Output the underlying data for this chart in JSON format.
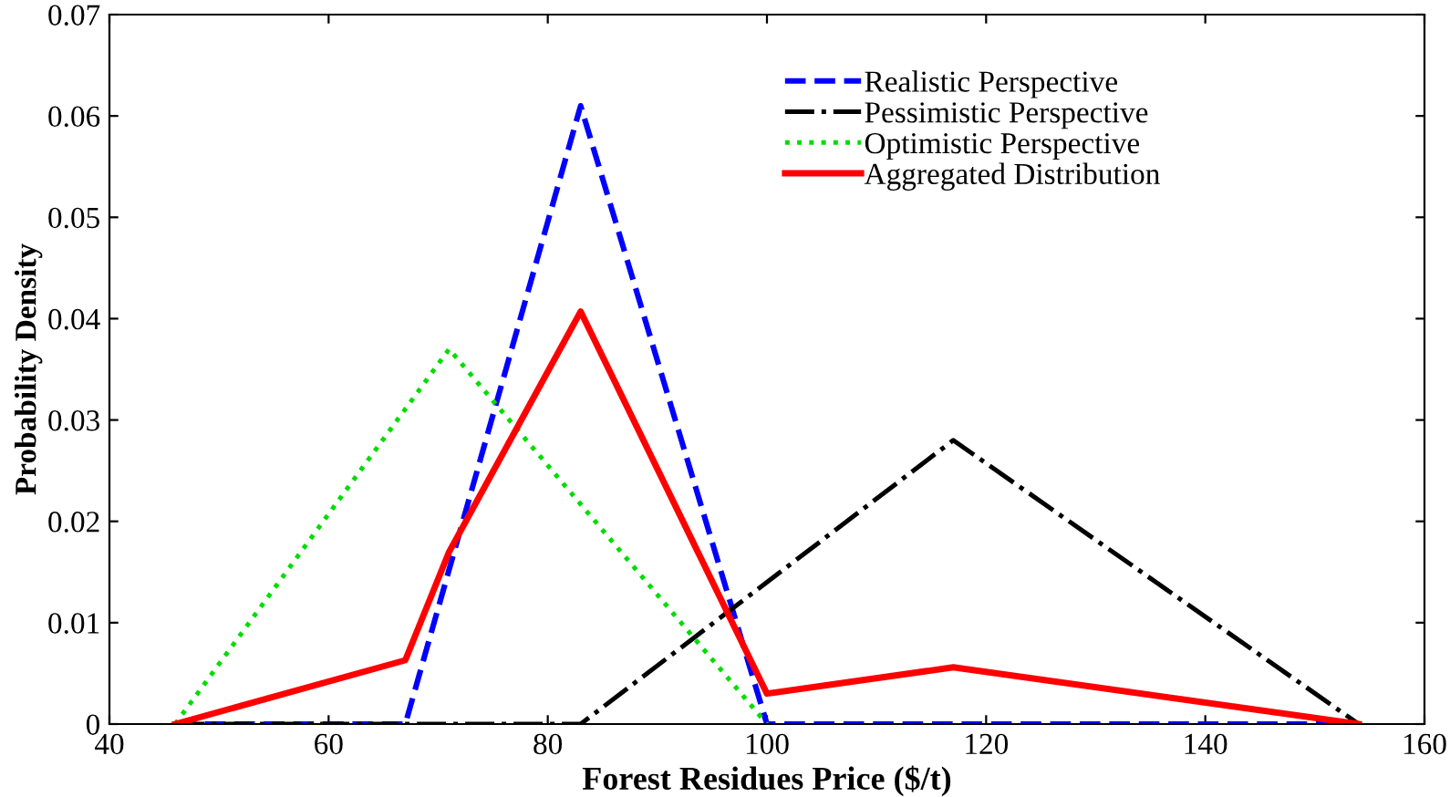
{
  "chart_data": {
    "type": "line",
    "xlabel": "Forest Residues Price ($/t)",
    "ylabel": "Probability Density",
    "xlim": [
      40,
      160
    ],
    "xticks": [
      40,
      60,
      80,
      100,
      120,
      140,
      160
    ],
    "ylim": [
      0,
      0.07
    ],
    "yticks": [
      0,
      0.01,
      0.02,
      0.03,
      0.04,
      0.05,
      0.06,
      0.07
    ],
    "grid": false,
    "legend": "top right",
    "series": [
      {
        "name": "Realistic Perspective",
        "color": "#0000ff",
        "line_style": "dashed",
        "x": [
          46,
          67,
          83,
          100,
          154
        ],
        "values": [
          0,
          0,
          0.061,
          0,
          0
        ]
      },
      {
        "name": "Pessimistic Perspective",
        "color": "#000000",
        "line_style": "dashdot",
        "x": [
          46,
          83,
          117,
          154
        ],
        "values": [
          0,
          0,
          0.028,
          0
        ]
      },
      {
        "name": "Optimistic Perspective",
        "color": "#00dd00",
        "line_style": "dotted",
        "x": [
          46,
          71,
          100
        ],
        "values": [
          0,
          0.037,
          0
        ]
      },
      {
        "name": "Aggregated Distribution",
        "color": "#ff0000",
        "line_style": "solid",
        "x": [
          46,
          67,
          71,
          83,
          100,
          117,
          154
        ],
        "values": [
          0,
          0.0063,
          0.017,
          0.0407,
          0.003,
          0.0056,
          0
        ]
      }
    ]
  }
}
